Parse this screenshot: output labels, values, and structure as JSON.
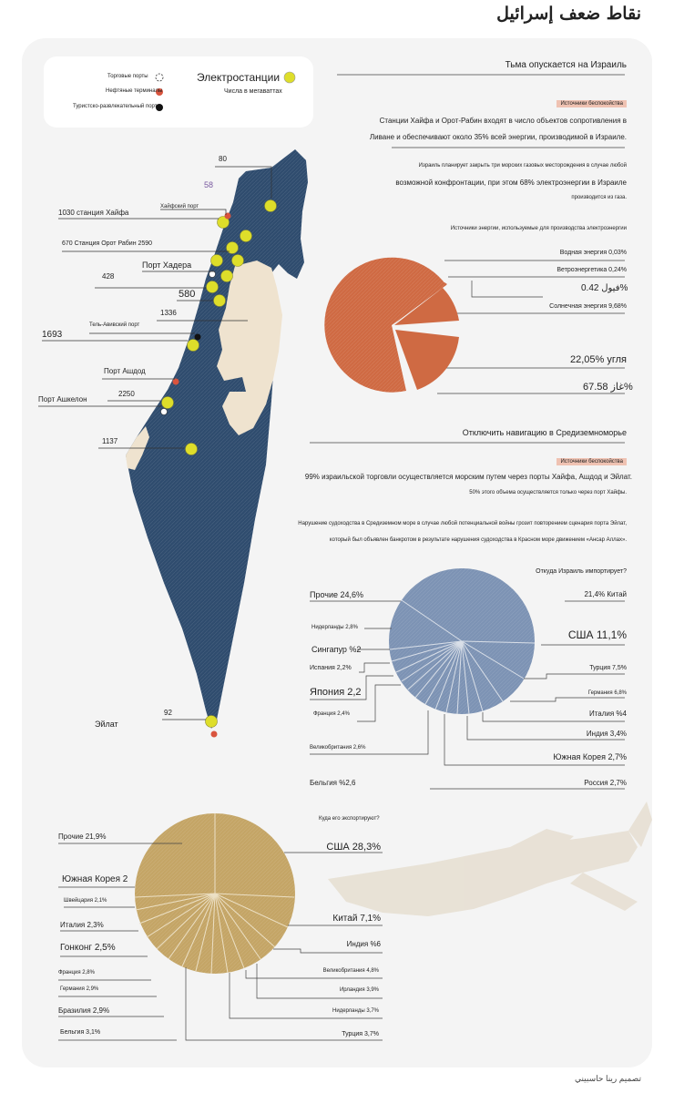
{
  "title": "نقاط ضعف إسرائيل",
  "credit": "تصميم رينا حاسبيني",
  "legend": {
    "plants": "Электростанции",
    "plants_note": "Числа в мегаваттах",
    "trade_ports": "Торговые порты",
    "oil_terminals": "Нефтяные терминалы",
    "tourist_port": "Туристско-развлекательный порт"
  },
  "colors": {
    "map": "#2f4c6e",
    "west_bank": "#efe3cf",
    "plant": "#dede2a",
    "oil": "#d9543e",
    "coal_pie": "#cf6a43",
    "import_pie": "#7d93b4",
    "export_pie": "#c4a566"
  },
  "map_labels": {
    "v80": "80",
    "v58": "58",
    "haifa_port": "Хайфский порт",
    "haifa_station": "1030 станция Хайфа",
    "orot_rabin": "670 Станция Орот Рабин 2590",
    "hadera_port": "Порт Хадера",
    "v428": "428",
    "v580": "580",
    "v1336": "1336",
    "tel_aviv_port": "Тель-Авивский порт",
    "v1693": "1693",
    "ashdod_port": "Порт Ашдод",
    "ashkelon_port": "Порт Ашкелон",
    "v2250": "2250",
    "v1137": "1137",
    "v92": "92",
    "eilat": "Эйлат"
  },
  "energy": {
    "heading": "Тьма опускается на Израиль",
    "source_tag": "Источники беспокойства",
    "p1a": "Станции Хайфа и Орот-Рабин входят в число объектов сопротивления в",
    "p1b": "Ливане и обеспечивают около 35% всей энергии, производимой в Израиле.",
    "p2a": "Израиль планирует закрыть три морских газовых месторождения в случае любой",
    "p2b": "возможной конфронтации, при этом 68% электроэнергии в Израиле",
    "p2c": "производится из газа.",
    "chart_title": "Источники энергии, используемые для производства электроэнергии",
    "l_water": "Водная энергия 0,03%",
    "l_wind": "Ветроэнергетика 0,24%",
    "l_fuel": "فيول 0.42%",
    "l_solar": "Солнечная энергия 9,68%",
    "l_coal": "22,05% угля",
    "l_gas": "غاز 67.58%"
  },
  "nav": {
    "heading": "Отключить навигацию в Средиземноморье",
    "source_tag": "Источники беспокойства",
    "p1": "99% израильской торговли осуществляется морским путем через порты Хайфа, Ашдод и Эйлат.",
    "p2": "50% этого объема осуществляется только через порт Хайфы.",
    "p3a": "Нарушение судоходства в Средиземном море в случае любой потенциальной войны грозит повторением сценария порта Эйлат,",
    "p3b": "который был объявлен банкротом в результате нарушения судоходства в Красном море движением «Ансар Аллах».",
    "import_q": "Откуда Израиль импортирует?",
    "export_q": "Куда его экспортируют?"
  },
  "chart_data": [
    {
      "type": "pie",
      "title": "Источники энергии, используемые для производства электроэнергии",
      "categories": [
        "Газ",
        "Уголь",
        "Солнечная энергия",
        "Фуел",
        "Ветроэнергетика",
        "Водная энергия"
      ],
      "values": [
        67.58,
        22.05,
        9.68,
        0.42,
        0.24,
        0.03
      ]
    },
    {
      "type": "pie",
      "title": "Откуда Израиль импортирует?",
      "categories": [
        "Китай",
        "США",
        "Турция",
        "Германия",
        "Италия",
        "Индия",
        "Южная Корея",
        "Россия",
        "Бельгия",
        "Великобритания",
        "Франция",
        "Япония",
        "Испания",
        "Сингапур",
        "Нидерланды",
        "Прочие"
      ],
      "values": [
        21.4,
        11.1,
        7.5,
        6.8,
        4,
        3.4,
        2.7,
        2.7,
        2.6,
        2.6,
        2.4,
        2.2,
        2.2,
        2,
        2.8,
        24.6
      ]
    },
    {
      "type": "pie",
      "title": "Куда его экспортируют?",
      "categories": [
        "США",
        "Китай",
        "Индия",
        "Великобритания",
        "Ирландия",
        "Нидерланды",
        "Турция",
        "Бельгия",
        "Бразилия",
        "Германия",
        "Франция",
        "Гонконг",
        "Италия",
        "Швейцария",
        "Южная Корея",
        "Прочие"
      ],
      "values": [
        28.3,
        7.1,
        6,
        4.8,
        3.9,
        3.7,
        3.7,
        3.1,
        2.9,
        2.9,
        2.8,
        2.5,
        2.3,
        2.1,
        2,
        21.9
      ]
    }
  ],
  "import_labels": {
    "other": "Прочие 24,6%",
    "china": "21,4% Китай",
    "nl": "Нидерланды 2,8%",
    "usa": "США 11,1%",
    "sg": "Сингапур %2",
    "es": "Испания 2,2%",
    "tr": "Турция 7,5%",
    "jp": "Япония 2,2",
    "de": "Германия 6,8%",
    "fr": "Франция 2,4%",
    "it": "Италия %4",
    "in": "Индия 3,4%",
    "gb": "Великобритания 2,6%",
    "kr": "Южная Корея 2,7%",
    "be": "Бельгия %2,6",
    "ru": "Россия 2,7%"
  },
  "export_labels": {
    "other": "Прочие 21,9%",
    "usa": "США 28,3%",
    "kr": "Южная Корея 2",
    "ch": "Швейцария 2,1%",
    "it": "Италия 2,3%",
    "cn": "Китай 7,1%",
    "hk": "Гонконг 2,5%",
    "in": "Индия %6",
    "fr": "Франция 2,8%",
    "gb": "Великобритания 4,8%",
    "de": "Германия 2,9%",
    "ie": "Ирландия 3,9%",
    "br": "Бразилия 2,9%",
    "nl": "Нидерланды 3,7%",
    "be": "Бельгия 3,1%",
    "tr": "Турция 3,7%"
  }
}
